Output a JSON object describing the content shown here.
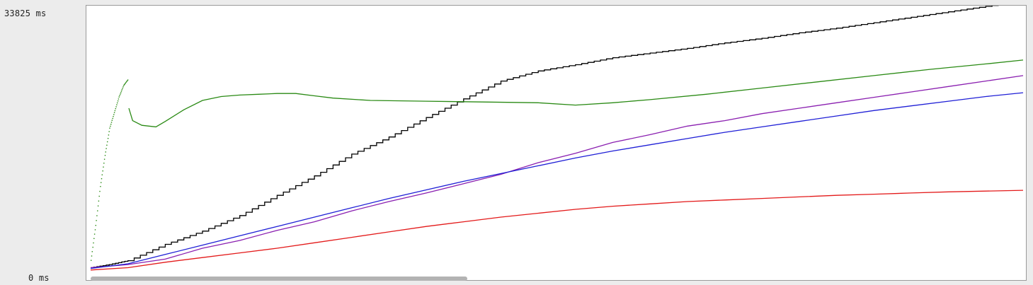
{
  "y_axis": {
    "max_label": "33825 ms",
    "min_label": "0 ms"
  },
  "chart_data": {
    "type": "line",
    "title": "",
    "xlabel": "",
    "ylabel": "",
    "ylim": [
      0,
      33825
    ],
    "xlim": [
      0,
      100
    ],
    "grid": false,
    "legend": "none",
    "series": [
      {
        "color": "#000000",
        "style": "step-line",
        "points": [
          [
            0,
            500
          ],
          [
            2,
            900
          ],
          [
            4,
            1400
          ],
          [
            8,
            3500
          ],
          [
            12,
            5200
          ],
          [
            16,
            7200
          ],
          [
            20,
            9800
          ],
          [
            24,
            12300
          ],
          [
            28,
            15100
          ],
          [
            32,
            17300
          ],
          [
            36,
            19800
          ],
          [
            40,
            22200
          ],
          [
            44,
            24500
          ],
          [
            48,
            25800
          ],
          [
            52,
            26600
          ],
          [
            56,
            27500
          ],
          [
            60,
            28100
          ],
          [
            64,
            28700
          ],
          [
            68,
            29400
          ],
          [
            72,
            30000
          ],
          [
            76,
            30700
          ],
          [
            80,
            31300
          ],
          [
            84,
            32000
          ],
          [
            88,
            32700
          ],
          [
            92,
            33400
          ],
          [
            96,
            34100
          ],
          [
            100,
            34800
          ]
        ]
      },
      {
        "color": "#2a8a14",
        "style": "dotted-then-line",
        "points": [
          [
            0,
            1500
          ],
          [
            0.5,
            6000
          ],
          [
            1,
            11000
          ],
          [
            1.5,
            15000
          ],
          [
            2,
            18500
          ],
          [
            2.5,
            20500
          ],
          [
            3,
            22500
          ],
          [
            3.5,
            24000
          ],
          [
            4,
            24800
          ],
          [
            4.1,
            21000
          ],
          [
            4.5,
            19400
          ],
          [
            5.5,
            18800
          ],
          [
            7,
            18600
          ],
          [
            8,
            19300
          ],
          [
            10,
            20800
          ],
          [
            12,
            22000
          ],
          [
            14,
            22500
          ],
          [
            16,
            22700
          ],
          [
            18,
            22800
          ],
          [
            20,
            22900
          ],
          [
            22,
            22900
          ],
          [
            24,
            22600
          ],
          [
            26,
            22300
          ],
          [
            30,
            22000
          ],
          [
            36,
            21900
          ],
          [
            42,
            21800
          ],
          [
            48,
            21700
          ],
          [
            52,
            21400
          ],
          [
            56,
            21700
          ],
          [
            60,
            22100
          ],
          [
            66,
            22800
          ],
          [
            72,
            23600
          ],
          [
            78,
            24400
          ],
          [
            84,
            25200
          ],
          [
            90,
            26000
          ],
          [
            96,
            26700
          ],
          [
            100,
            27200
          ]
        ]
      },
      {
        "color": "#8a1fb0",
        "style": "line",
        "points": [
          [
            0,
            500
          ],
          [
            2,
            700
          ],
          [
            4,
            900
          ],
          [
            8,
            1600
          ],
          [
            12,
            3000
          ],
          [
            16,
            4000
          ],
          [
            20,
            5300
          ],
          [
            24,
            6400
          ],
          [
            28,
            7800
          ],
          [
            32,
            9000
          ],
          [
            36,
            10100
          ],
          [
            40,
            11300
          ],
          [
            44,
            12500
          ],
          [
            48,
            14000
          ],
          [
            52,
            15200
          ],
          [
            56,
            16600
          ],
          [
            60,
            17600
          ],
          [
            64,
            18700
          ],
          [
            68,
            19400
          ],
          [
            72,
            20300
          ],
          [
            76,
            21000
          ],
          [
            80,
            21700
          ],
          [
            84,
            22400
          ],
          [
            88,
            23100
          ],
          [
            92,
            23800
          ],
          [
            96,
            24500
          ],
          [
            100,
            25200
          ]
        ]
      },
      {
        "color": "#1f1fd6",
        "style": "line",
        "points": [
          [
            0,
            400
          ],
          [
            4,
            1000
          ],
          [
            8,
            2200
          ],
          [
            12,
            3400
          ],
          [
            16,
            4600
          ],
          [
            20,
            5800
          ],
          [
            24,
            7000
          ],
          [
            28,
            8200
          ],
          [
            32,
            9400
          ],
          [
            36,
            10500
          ],
          [
            40,
            11600
          ],
          [
            44,
            12600
          ],
          [
            48,
            13600
          ],
          [
            52,
            14600
          ],
          [
            56,
            15500
          ],
          [
            60,
            16300
          ],
          [
            64,
            17100
          ],
          [
            68,
            17900
          ],
          [
            72,
            18600
          ],
          [
            76,
            19300
          ],
          [
            80,
            20000
          ],
          [
            84,
            20700
          ],
          [
            88,
            21300
          ],
          [
            92,
            21900
          ],
          [
            96,
            22500
          ],
          [
            100,
            23000
          ]
        ]
      },
      {
        "color": "#e31a1a",
        "style": "line",
        "points": [
          [
            0,
            200
          ],
          [
            4,
            500
          ],
          [
            8,
            1200
          ],
          [
            12,
            1800
          ],
          [
            16,
            2400
          ],
          [
            20,
            3000
          ],
          [
            24,
            3700
          ],
          [
            28,
            4400
          ],
          [
            32,
            5100
          ],
          [
            36,
            5800
          ],
          [
            40,
            6400
          ],
          [
            44,
            7000
          ],
          [
            48,
            7500
          ],
          [
            52,
            8000
          ],
          [
            56,
            8400
          ],
          [
            60,
            8700
          ],
          [
            64,
            9000
          ],
          [
            68,
            9200
          ],
          [
            72,
            9400
          ],
          [
            76,
            9600
          ],
          [
            80,
            9800
          ],
          [
            84,
            9950
          ],
          [
            88,
            10100
          ],
          [
            92,
            10250
          ],
          [
            96,
            10350
          ],
          [
            100,
            10450
          ]
        ]
      }
    ]
  },
  "scrollbar": {
    "thumb_fraction": 0.4,
    "position_fraction": 0.0
  }
}
